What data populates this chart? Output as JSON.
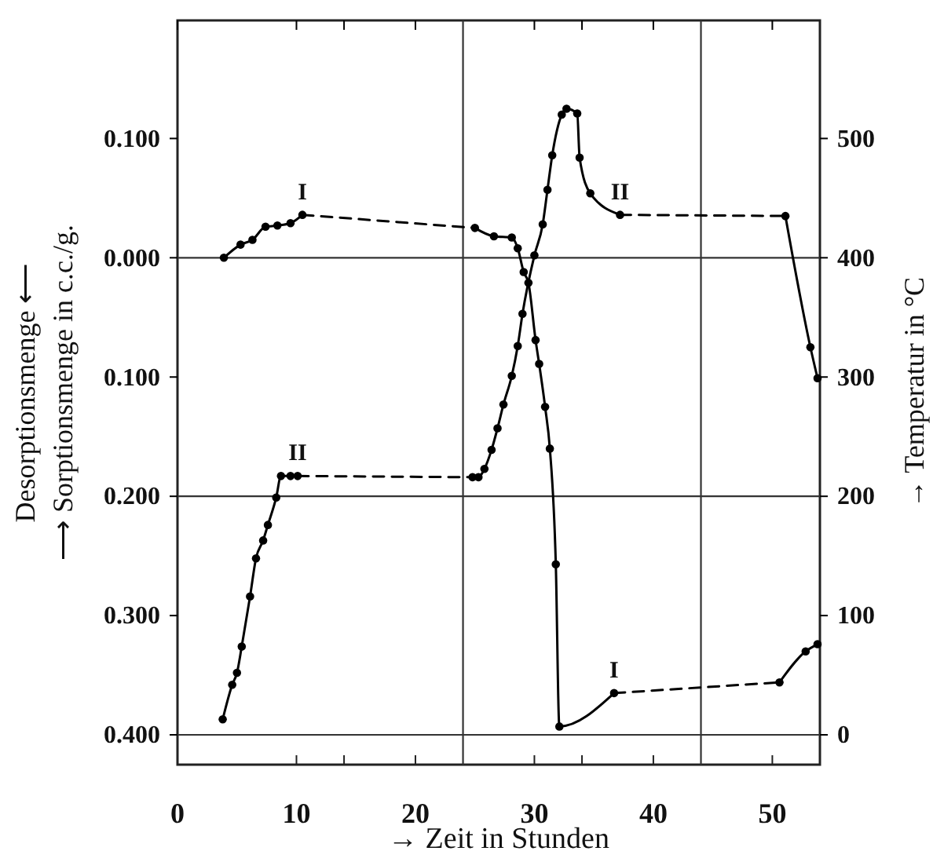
{
  "chart_data": {
    "type": "line",
    "xlabel": "→ Zeit in Stunden",
    "ylabel": "Desorptionsmenge ⟵\n⟶ Sorptionsmenge in c.c./g.",
    "y2label": "→ Temperatur in °C",
    "xlim": [
      0,
      54
    ],
    "xticks": [
      0,
      10,
      {
        "value": 14,
        "label": null
      },
      20,
      30,
      {
        "value": 34,
        "label": null
      },
      40,
      50
    ],
    "ylim": [
      -0.425,
      0.199
    ],
    "yticks": [
      {
        "value": 0.1,
        "label": "0.100"
      },
      {
        "value": 0,
        "label": "0.000"
      },
      {
        "value": -0.1,
        "label": "0.100"
      },
      {
        "value": -0.2,
        "label": "0.200"
      },
      {
        "value": -0.3,
        "label": "0.300"
      },
      {
        "value": -0.4,
        "label": "0.400"
      }
    ],
    "y2lim": [
      -25,
      599
    ],
    "y2ticks": [
      0,
      100,
      200,
      300,
      400,
      500
    ],
    "grid": false,
    "ref_lines": [
      {
        "axis": "x",
        "value": 24
      },
      {
        "axis": "x",
        "value": 44
      },
      {
        "axis": "y",
        "value": 0
      },
      {
        "axis": "y",
        "value": -0.2
      },
      {
        "axis": "y",
        "value": -0.4
      }
    ],
    "series": [
      {
        "name": "I",
        "color": "#000000",
        "marker": "circle",
        "line_style": "solid",
        "x": [
          3.9,
          5.3,
          6.3,
          7.4,
          8.4,
          9.5,
          10.5
        ],
        "values": [
          0,
          0.011,
          0.015,
          0.026,
          0.027,
          0.029,
          0.036
        ]
      },
      {
        "color": "#000000",
        "line_style": "dashed",
        "x": [
          10.5,
          25.0
        ],
        "values": [
          0.036,
          0.025
        ]
      },
      {
        "name": "I",
        "color": "#000000",
        "marker": "circle",
        "line_style": "solid",
        "x": [
          25.0,
          26.6,
          28.1,
          28.6,
          29.1,
          29.5,
          30.1,
          30.4,
          30.9,
          31.3,
          31.8,
          32.1,
          36.7
        ],
        "values": [
          0.025,
          0.018,
          0.017,
          0.008,
          -0.012,
          -0.021,
          -0.069,
          -0.089,
          -0.125,
          -0.16,
          -0.257,
          -0.393,
          -0.365
        ]
      },
      {
        "color": "#000000",
        "line_style": "dashed",
        "x": [
          36.7,
          50.6
        ],
        "values": [
          -0.365,
          -0.356
        ]
      },
      {
        "color": "#000000",
        "marker": "circle",
        "line_style": "solid",
        "x": [
          50.6,
          52.8,
          53.8
        ],
        "values": [
          -0.356,
          -0.33,
          -0.324
        ]
      },
      {
        "name": "II",
        "axis": "y2",
        "color": "#000000",
        "marker": "circle",
        "line_style": "solid",
        "x": [
          3.8,
          4.6,
          5.0,
          5.4,
          6.1,
          6.6,
          7.2,
          7.6,
          8.3,
          8.7,
          9.5,
          10.1
        ],
        "values": [
          13,
          42,
          52,
          74,
          116,
          148,
          163,
          176,
          199,
          217,
          217,
          217
        ]
      },
      {
        "axis": "y2",
        "color": "#000000",
        "line_style": "dashed",
        "x": [
          10.1,
          24.8
        ],
        "values": [
          217,
          216
        ]
      },
      {
        "name": "II",
        "axis": "y2",
        "color": "#000000",
        "marker": "circle",
        "line_style": "solid",
        "x": [
          24.8,
          25.3,
          25.8,
          26.4,
          26.9,
          27.4,
          28.1,
          28.6,
          29.0,
          30.0,
          30.7,
          31.1,
          31.5,
          32.3,
          32.7,
          33.6,
          33.8,
          34.7,
          37.2
        ],
        "values": [
          216,
          216,
          223,
          239,
          257,
          277,
          301,
          326,
          353,
          402,
          428,
          457,
          486,
          520,
          525,
          521,
          484,
          454,
          436
        ]
      },
      {
        "axis": "y2",
        "color": "#000000",
        "line_style": "dashed",
        "x": [
          37.2,
          51.1
        ],
        "values": [
          436,
          435
        ]
      },
      {
        "axis": "y2",
        "color": "#000000",
        "marker": "circle",
        "line_style": "solid",
        "x": [
          51.1,
          53.2,
          53.8
        ],
        "values": [
          435,
          325,
          299
        ]
      }
    ]
  }
}
